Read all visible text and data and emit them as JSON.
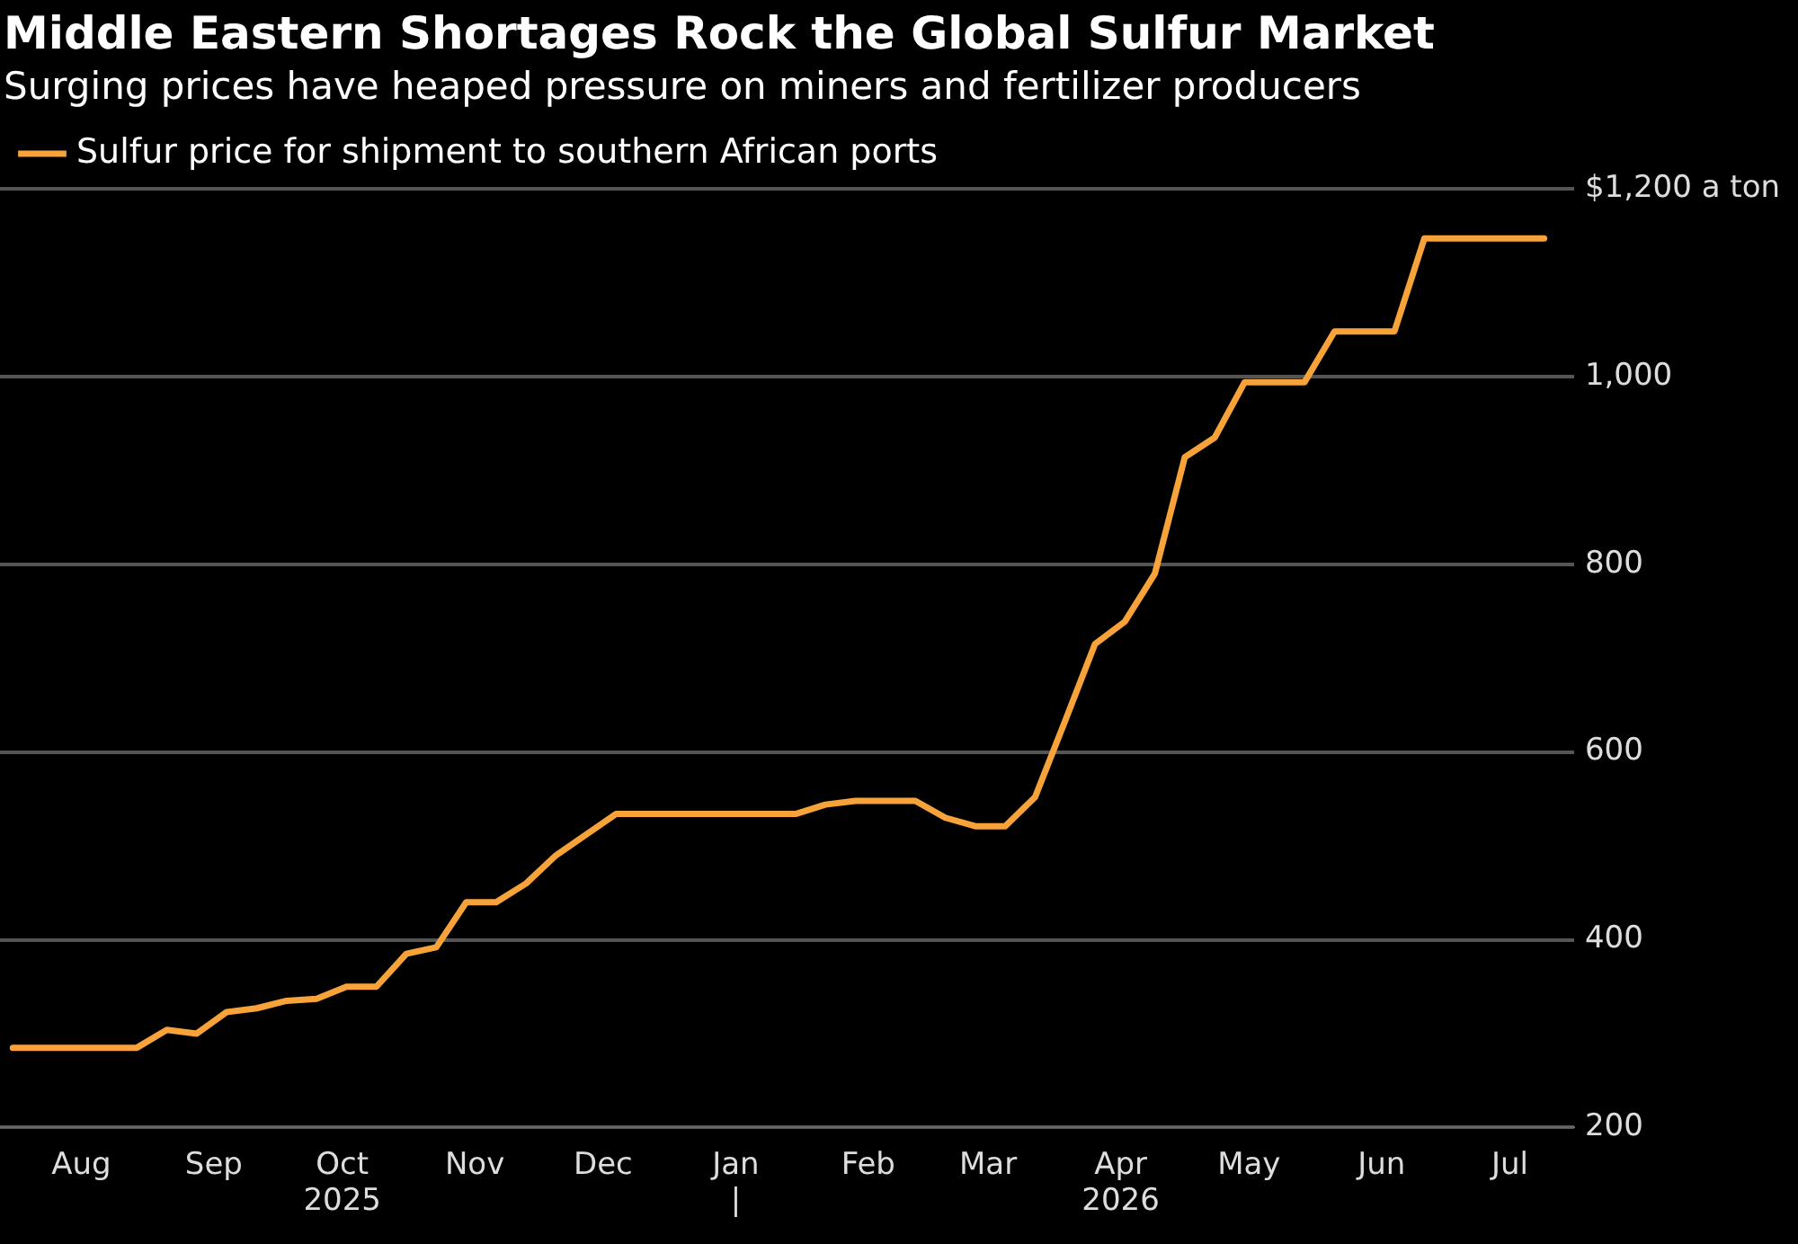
{
  "chart_data": {
    "type": "line",
    "title": "Middle Eastern Shortages Rock the Global Sulfur Market",
    "subtitle": "Surging prices have heaped pressure on miners and fertilizer producers",
    "series": [
      {
        "name": "Sulfur price for shipment to southern African ports",
        "color": "#f7a33a",
        "x": [
          "2025-07-16",
          "2025-08-14",
          "2025-08-21",
          "2025-08-28",
          "2025-09-04",
          "2025-09-11",
          "2025-09-18",
          "2025-09-25",
          "2025-10-02",
          "2025-10-09",
          "2025-10-16",
          "2025-10-23",
          "2025-10-30",
          "2025-11-06",
          "2025-11-13",
          "2025-11-20",
          "2025-11-27",
          "2025-12-04",
          "2026-01-15",
          "2026-01-22",
          "2026-01-29",
          "2026-02-12",
          "2026-02-19",
          "2026-02-26",
          "2026-03-05",
          "2026-03-12",
          "2026-03-19",
          "2026-03-26",
          "2026-04-02",
          "2026-04-09",
          "2026-04-16",
          "2026-04-23",
          "2026-04-30",
          "2026-05-14",
          "2026-05-21",
          "2026-06-04",
          "2026-06-11",
          "2026-07-09"
        ],
        "values": [
          285,
          285,
          304,
          300,
          323,
          327,
          335,
          337,
          350,
          350,
          385,
          392,
          440,
          440,
          460,
          490,
          512,
          534,
          534,
          544,
          548,
          548,
          530,
          521,
          521,
          552,
          633,
          715,
          739,
          790,
          914,
          935,
          994,
          994,
          1048,
          1048,
          1147,
          1147
        ]
      }
    ],
    "xlim": [
      "2025-07-13",
      "2026-07-16"
    ],
    "xticks": [
      {
        "value": "2025-08-01",
        "label": "Aug"
      },
      {
        "value": "2025-09-01",
        "label": "Sep"
      },
      {
        "value": "2025-10-01",
        "label": "Oct\n2025"
      },
      {
        "value": "2025-11-01",
        "label": "Nov"
      },
      {
        "value": "2025-12-01",
        "label": "Dec"
      },
      {
        "value": "2026-01-01",
        "label": "Jan\n|"
      },
      {
        "value": "2026-02-01",
        "label": "Feb"
      },
      {
        "value": "2026-03-01",
        "label": "Mar"
      },
      {
        "value": "2026-04-01",
        "label": "Apr\n2026"
      },
      {
        "value": "2026-05-01",
        "label": "May"
      },
      {
        "value": "2026-06-01",
        "label": "Jun"
      },
      {
        "value": "2026-07-01",
        "label": "Jul"
      }
    ],
    "ylim": [
      200,
      1200
    ],
    "yticks": [
      200,
      400,
      600,
      800,
      {
        "value": 1000,
        "label": "1,000"
      },
      {
        "value": 1200,
        "label": "$1,200 a ton"
      }
    ],
    "grid": "y",
    "legend": "top left",
    "marker": "none",
    "line_style": "solid"
  }
}
